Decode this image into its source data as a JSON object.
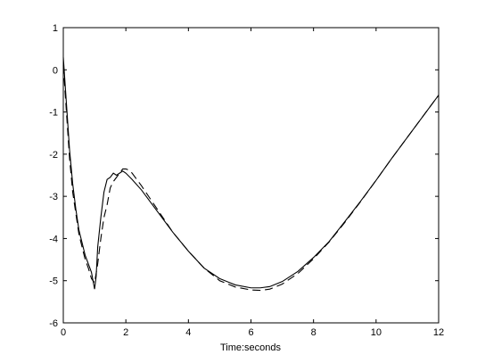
{
  "chart_data": {
    "type": "line",
    "title": "",
    "xlabel": "Time:seconds",
    "ylabel": "",
    "xlim": [
      0,
      12
    ],
    "ylim": [
      -6,
      1
    ],
    "xticks": [
      0,
      2,
      4,
      6,
      8,
      10,
      12
    ],
    "yticks": [
      1,
      0,
      -1,
      -2,
      -3,
      -4,
      -5,
      -6
    ],
    "grid": false,
    "legend": "none",
    "series": [
      {
        "style": "solid",
        "color": "#000000",
        "x": [
          0,
          0.1,
          0.2,
          0.3,
          0.4,
          0.5,
          0.6,
          0.7,
          0.8,
          0.9,
          1.0,
          1.05,
          1.1,
          1.2,
          1.3,
          1.4,
          1.5,
          1.6,
          1.7,
          1.8,
          1.9,
          2.0,
          2.2,
          2.5,
          3.0,
          3.5,
          4.0,
          4.5,
          5.0,
          5.5,
          6.0,
          6.3,
          6.6,
          7.0,
          7.5,
          8.0,
          8.5,
          9.0,
          9.5,
          10.0,
          10.5,
          11.0,
          11.5,
          12.0
        ],
        "y": [
          0.3,
          -0.8,
          -1.9,
          -2.7,
          -3.3,
          -3.8,
          -4.1,
          -4.4,
          -4.6,
          -4.8,
          -5.2,
          -4.9,
          -4.2,
          -3.5,
          -2.9,
          -2.6,
          -2.55,
          -2.45,
          -2.5,
          -2.45,
          -2.4,
          -2.45,
          -2.6,
          -2.85,
          -3.35,
          -3.85,
          -4.3,
          -4.7,
          -4.95,
          -5.1,
          -5.17,
          -5.17,
          -5.14,
          -5.02,
          -4.78,
          -4.45,
          -4.07,
          -3.6,
          -3.12,
          -2.62,
          -2.1,
          -1.6,
          -1.1,
          -0.6
        ]
      },
      {
        "style": "dashed",
        "color": "#000000",
        "x": [
          0,
          0.1,
          0.2,
          0.3,
          0.4,
          0.5,
          0.6,
          0.7,
          0.8,
          0.9,
          1.0,
          1.1,
          1.2,
          1.3,
          1.4,
          1.5,
          1.6,
          1.7,
          1.8,
          1.9,
          2.0,
          2.1,
          2.2,
          2.5,
          3.0,
          3.5,
          4.0,
          4.5,
          5.0,
          5.5,
          6.0,
          6.3,
          6.6,
          7.0,
          7.5,
          8.0,
          8.5,
          9.0,
          9.5,
          10.0,
          10.5,
          11.0,
          11.5,
          12.0
        ],
        "y": [
          0.1,
          -1.0,
          -2.1,
          -2.9,
          -3.4,
          -3.9,
          -4.2,
          -4.5,
          -4.7,
          -4.95,
          -5.05,
          -4.6,
          -4.0,
          -3.5,
          -3.2,
          -2.8,
          -2.65,
          -2.55,
          -2.45,
          -2.35,
          -2.35,
          -2.38,
          -2.45,
          -2.75,
          -3.3,
          -3.85,
          -4.3,
          -4.7,
          -5.0,
          -5.15,
          -5.22,
          -5.23,
          -5.2,
          -5.08,
          -4.83,
          -4.48,
          -4.08,
          -3.62,
          -3.13,
          -2.62,
          -2.1,
          -1.6,
          -1.1,
          -0.6
        ]
      }
    ]
  }
}
